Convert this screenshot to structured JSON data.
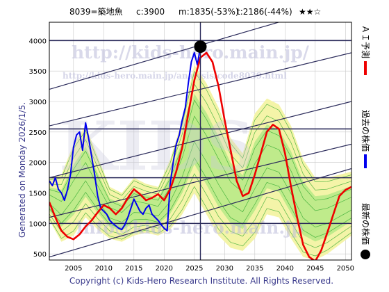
{
  "header": {
    "code_name": "8039=築地魚",
    "current": "c:3900",
    "min": "m:1835(-53%)",
    "target": "t:2186(-44%)",
    "stars": "★★☆"
  },
  "side_label": "Generated on Monday 2026/1/5.",
  "copyright": "Copyright (c) Kids-Hero Research Institute. All Rights Reserved.",
  "watermarks": {
    "url": "http://kids-hero.main.jp/",
    "analysis_url": "http://kids-hero.main.jp/analysis/code8039.html",
    "big": "KIDS",
    "mail": "info@kids-hero.main.jp"
  },
  "legend": {
    "forecast": "ＡＩ予測",
    "past": "過去の株価",
    "latest": "最新の株価"
  },
  "colors": {
    "forecast": "#ee0000",
    "past": "#0000ee",
    "latest": "#000000",
    "band_fill": "#f4f4a8",
    "band_inner": "#aee882",
    "band_line": "#2ea82e",
    "trend": "#2a2a5a",
    "grid": "#c8c8c8"
  },
  "chart_data": {
    "type": "line",
    "title": "",
    "xlabel": "",
    "ylabel": "",
    "xlim": [
      2001,
      2051
    ],
    "ylim": [
      400,
      4300
    ],
    "xticks": [
      2005,
      2010,
      2015,
      2020,
      2025,
      2030,
      2035,
      2040,
      2045,
      2050
    ],
    "yticks": [
      500,
      1000,
      1500,
      2000,
      2500,
      3000,
      3500,
      4000
    ],
    "grid": true,
    "latest_point": {
      "x": 2026.0,
      "y": 3900
    },
    "reference_levels": [
      {
        "name": "current",
        "y": 3900
      },
      {
        "name": "target",
        "y": 2186
      },
      {
        "name": "min",
        "y": 1835
      }
    ],
    "series": [
      {
        "name": "過去の株価",
        "x": [
          2001.0,
          2001.5,
          2002.0,
          2002.5,
          2003.0,
          2003.5,
          2004.0,
          2004.5,
          2005.0,
          2005.5,
          2006.0,
          2006.5,
          2007.0,
          2007.5,
          2008.0,
          2008.5,
          2009.0,
          2009.5,
          2010.0,
          2010.5,
          2011.0,
          2011.5,
          2012.0,
          2012.5,
          2013.0,
          2013.5,
          2014.0,
          2014.5,
          2015.0,
          2015.5,
          2016.0,
          2016.5,
          2017.0,
          2017.5,
          2018.0,
          2018.5,
          2019.0,
          2019.5,
          2020.0,
          2020.5,
          2021.0,
          2021.5,
          2022.0,
          2022.5,
          2023.0,
          2023.5,
          2024.0,
          2024.5,
          2025.0,
          2025.5,
          2026.0
        ],
        "y": [
          1700,
          1620,
          1750,
          1560,
          1500,
          1380,
          1550,
          1800,
          2250,
          2450,
          2500,
          2200,
          2650,
          2400,
          2100,
          1800,
          1450,
          1250,
          1200,
          1150,
          1050,
          1000,
          960,
          920,
          900,
          980,
          1100,
          1250,
          1400,
          1300,
          1200,
          1150,
          1250,
          1300,
          1150,
          1100,
          1050,
          980,
          920,
          880,
          1650,
          2000,
          2300,
          2450,
          2700,
          2900,
          3300,
          3650,
          3800,
          3600,
          3900
        ]
      },
      {
        "name": "ＡＩ予測",
        "x": [
          2001.0,
          2002.0,
          2003.0,
          2004.0,
          2005.0,
          2006.0,
          2007.0,
          2008.0,
          2009.0,
          2010.0,
          2011.0,
          2012.0,
          2013.0,
          2014.0,
          2015.0,
          2016.0,
          2017.0,
          2018.0,
          2019.0,
          2020.0,
          2021.0,
          2022.0,
          2023.0,
          2024.0,
          2025.0,
          2026.0,
          2027.0,
          2028.0,
          2029.0,
          2030.0,
          2031.0,
          2032.0,
          2033.0,
          2034.0,
          2035.0,
          2036.0,
          2037.0,
          2038.0,
          2039.0,
          2040.0,
          2041.0,
          2042.0,
          2043.0,
          2044.0,
          2045.0,
          2046.0,
          2047.0,
          2048.0,
          2049.0,
          2050.0,
          2051.0
        ],
        "y": [
          1350,
          1100,
          880,
          780,
          740,
          820,
          950,
          1050,
          1180,
          1300,
          1250,
          1150,
          1250,
          1420,
          1560,
          1480,
          1380,
          1420,
          1480,
          1380,
          1560,
          1850,
          2250,
          2800,
          3350,
          3720,
          3800,
          3650,
          3250,
          2700,
          2200,
          1700,
          1450,
          1500,
          1800,
          2150,
          2500,
          2620,
          2550,
          2150,
          1600,
          1100,
          650,
          450,
          380,
          560,
          850,
          1150,
          1450,
          1550,
          1600
        ]
      }
    ],
    "band": {
      "x": [
        2001.0,
        2003.0,
        2005.0,
        2007.0,
        2009.0,
        2011.0,
        2013.0,
        2015.0,
        2017.0,
        2019.0,
        2021.0,
        2023.0,
        2025.0,
        2027.0,
        2029.0,
        2031.0,
        2033.0,
        2035.0,
        2037.0,
        2039.0,
        2041.0,
        2043.0,
        2045.0,
        2047.0,
        2049.0,
        2051.0
      ],
      "upper": [
        1750,
        1800,
        2300,
        2600,
        2100,
        1600,
        1500,
        1750,
        1650,
        1600,
        2050,
        2700,
        3600,
        3300,
        2900,
        2400,
        2150,
        2800,
        3050,
        2950,
        2600,
        2050,
        1750,
        1750,
        1800,
        1850
      ],
      "lower": [
        1050,
        700,
        800,
        1100,
        900,
        750,
        700,
        800,
        850,
        800,
        900,
        1150,
        1500,
        1150,
        800,
        600,
        550,
        750,
        1150,
        1100,
        750,
        450,
        400,
        500,
        650,
        800
      ]
    },
    "trend_lines": [
      {
        "x": [
          2001,
          2051
        ],
        "y": [
          450,
          1900
        ]
      },
      {
        "x": [
          2001,
          2051
        ],
        "y": [
          1100,
          2300
        ]
      },
      {
        "x": [
          2001,
          2051
        ],
        "y": [
          1750,
          3000
        ]
      },
      {
        "x": [
          2001,
          2051
        ],
        "y": [
          2600,
          3800
        ]
      },
      {
        "x": [
          2001,
          2051
        ],
        "y": [
          3200,
          4650
        ]
      },
      {
        "x": [
          2001,
          2051
        ],
        "y": [
          1000,
          1000
        ]
      },
      {
        "x": [
          2001,
          2051
        ],
        "y": [
          1750,
          1750
        ]
      },
      {
        "x": [
          2001,
          2051
        ],
        "y": [
          2550,
          2550
        ]
      },
      {
        "x": [
          2001,
          2051
        ],
        "y": [
          4000,
          4000
        ]
      }
    ]
  }
}
